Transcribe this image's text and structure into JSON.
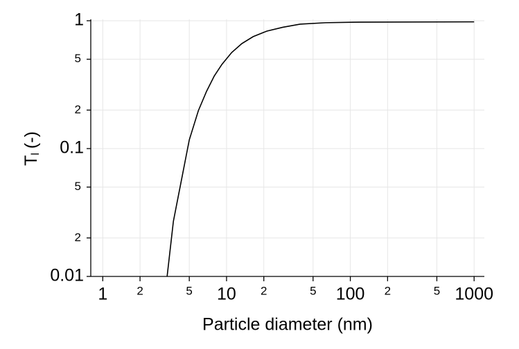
{
  "chart_data": {
    "type": "line",
    "xlabel": "Particle diameter (nm)",
    "ylabel": {
      "main": "T",
      "sub": "l",
      "rest": "(-)"
    },
    "x": [
      3.31,
      3.72,
      4.35,
      5.0,
      5.92,
      6.9,
      7.96,
      9.18,
      11,
      13.3,
      16.4,
      21.2,
      28.5,
      39.3,
      63,
      120,
      1000
    ],
    "series": [
      {
        "color": "#000000",
        "values": [
          0.01,
          0.027,
          0.0586,
          0.117,
          0.198,
          0.281,
          0.37,
          0.456,
          0.564,
          0.663,
          0.751,
          0.83,
          0.889,
          0.94,
          0.965,
          0.975,
          0.98
        ]
      }
    ],
    "xscale": "log",
    "yscale": "log",
    "xlim": [
      0.8,
      1210
    ],
    "ylim": [
      0.01,
      1
    ],
    "xticks": [
      1,
      2,
      5,
      10,
      {
        "value": 20,
        "label": "2"
      },
      {
        "value": 50,
        "label": "5"
      },
      100,
      {
        "value": 200,
        "label": "2"
      },
      {
        "value": 500,
        "label": "5"
      },
      1000
    ],
    "yticks": [
      0.01,
      {
        "value": 0.02,
        "label": "2"
      },
      {
        "value": 0.05,
        "label": "5"
      },
      0.1,
      {
        "value": 0.2,
        "label": "2"
      },
      {
        "value": 0.5,
        "label": "5"
      },
      1
    ],
    "grid": true
  }
}
